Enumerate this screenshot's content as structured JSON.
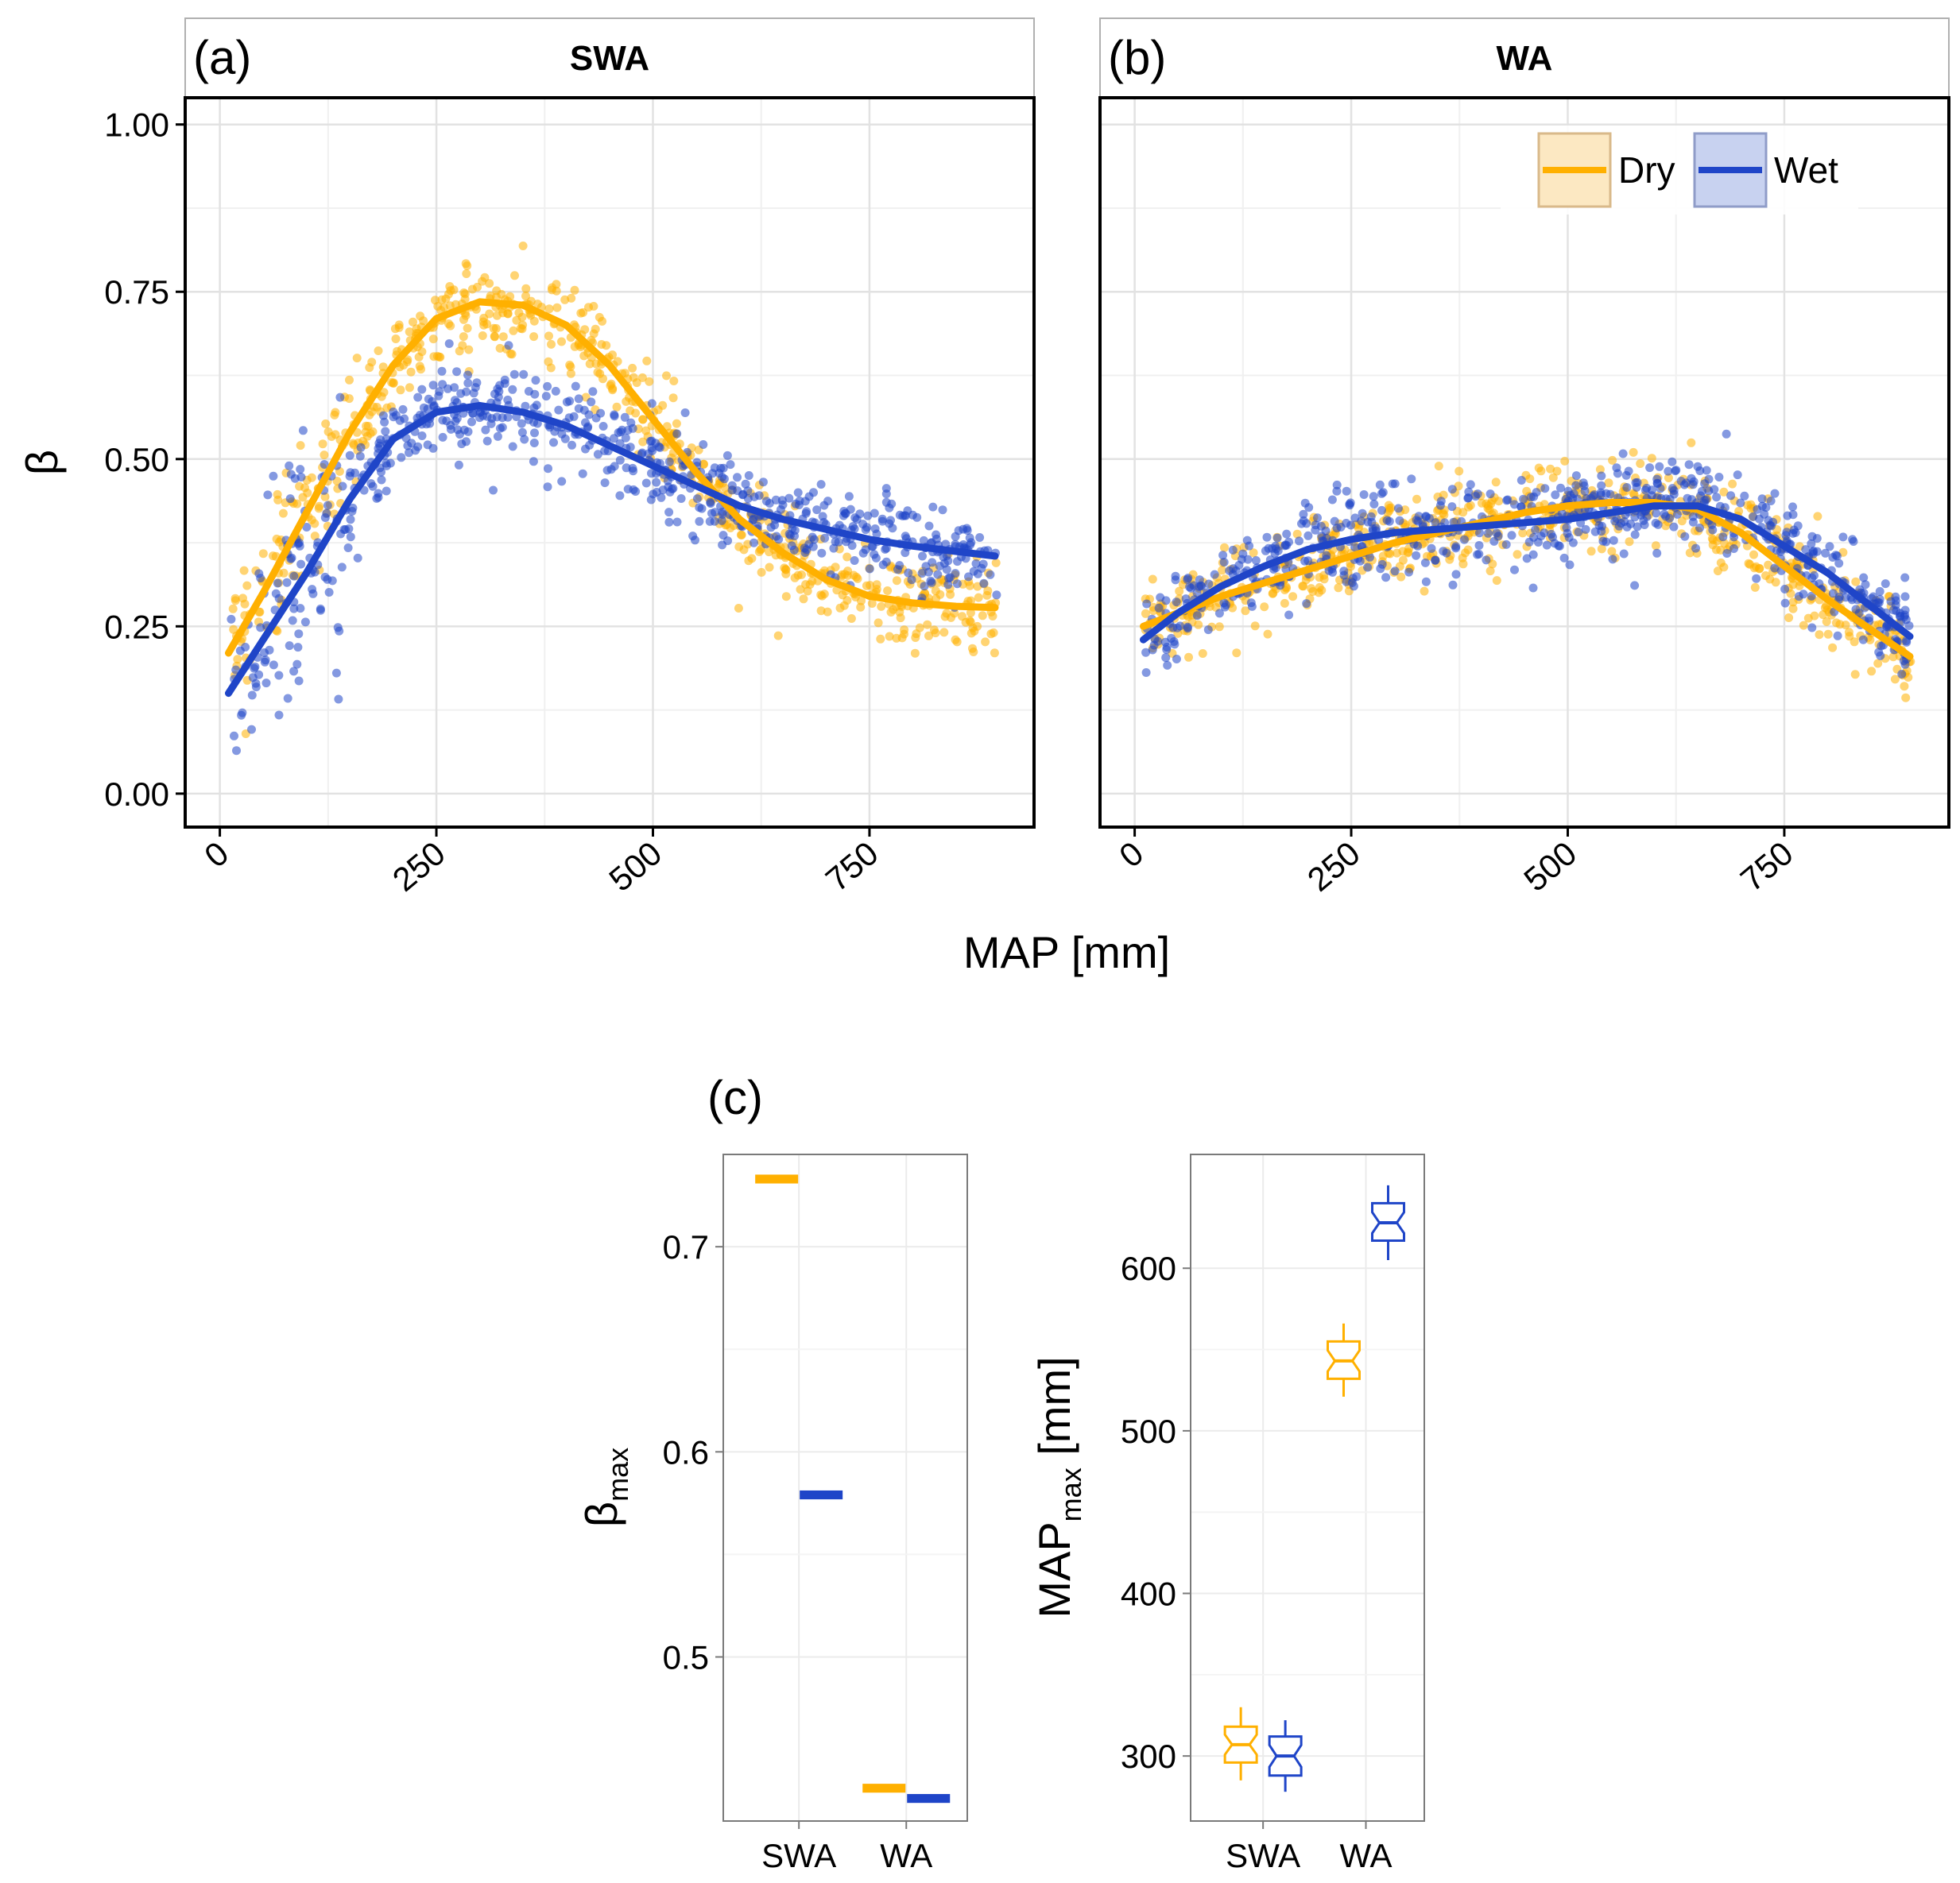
{
  "chart_data": [
    {
      "id": "a",
      "panel_tag": "(a)",
      "type": "scatter",
      "title": "SWA",
      "xlabel": "MAP [mm]",
      "ylabel": "β",
      "xlim": [
        -40,
        940
      ],
      "ylim": [
        -0.05,
        1.04
      ],
      "x_ticks": [
        0,
        250,
        500,
        750
      ],
      "x_tick_labels": [
        "0",
        "250",
        "500",
        "750"
      ],
      "y_ticks": [
        0,
        0.25,
        0.5,
        0.75,
        1.0
      ],
      "y_tick_labels": [
        "0.00",
        "0.25",
        "0.50",
        "0.75",
        "1.00"
      ],
      "grid": true,
      "series": [
        {
          "name": "Dry",
          "color": "#FFB000",
          "smooth": {
            "x": [
              10,
              50,
              100,
              150,
              200,
              250,
              300,
              350,
              400,
              450,
              500,
              550,
              600,
              650,
              700,
              750,
              800,
              850,
              895
            ],
            "y": [
              0.21,
              0.3,
              0.42,
              0.54,
              0.64,
              0.71,
              0.735,
              0.73,
              0.7,
              0.64,
              0.56,
              0.48,
              0.41,
              0.36,
              0.32,
              0.295,
              0.285,
              0.28,
              0.278
            ]
          }
        },
        {
          "name": "Wet",
          "color": "#1F45C8",
          "smooth": {
            "x": [
              10,
              50,
              100,
              150,
              200,
              250,
              300,
              350,
              400,
              450,
              500,
              550,
              600,
              650,
              700,
              750,
              800,
              850,
              895
            ],
            "y": [
              0.15,
              0.23,
              0.33,
              0.44,
              0.53,
              0.57,
              0.58,
              0.57,
              0.55,
              0.52,
              0.49,
              0.46,
              0.43,
              0.41,
              0.395,
              0.38,
              0.37,
              0.362,
              0.355
            ]
          }
        }
      ]
    },
    {
      "id": "b",
      "panel_tag": "(b)",
      "type": "scatter",
      "title": "WA",
      "xlabel": "MAP [mm]",
      "ylabel": "",
      "xlim": [
        -40,
        940
      ],
      "ylim": [
        -0.05,
        1.04
      ],
      "x_ticks": [
        0,
        250,
        500,
        750
      ],
      "x_tick_labels": [
        "0",
        "250",
        "500",
        "750"
      ],
      "y_ticks": [
        0,
        0.25,
        0.5,
        0.75,
        1.0
      ],
      "grid": true,
      "legend": {
        "position": "top-right",
        "entries": [
          "Dry",
          "Wet"
        ]
      },
      "series": [
        {
          "name": "Dry",
          "color": "#FFB000",
          "smooth": {
            "x": [
              10,
              50,
              100,
              150,
              200,
              250,
              300,
              350,
              400,
              450,
              500,
              550,
              600,
              650,
              700,
              750,
              800,
              850,
              895
            ],
            "y": [
              0.25,
              0.27,
              0.295,
              0.315,
              0.335,
              0.355,
              0.375,
              0.39,
              0.405,
              0.42,
              0.43,
              0.435,
              0.435,
              0.425,
              0.39,
              0.34,
              0.29,
              0.245,
              0.205
            ]
          }
        },
        {
          "name": "Wet",
          "color": "#1F45C8",
          "smooth": {
            "x": [
              10,
              50,
              100,
              150,
              200,
              250,
              300,
              350,
              400,
              450,
              500,
              550,
              600,
              650,
              700,
              750,
              800,
              850,
              895
            ],
            "y": [
              0.23,
              0.27,
              0.31,
              0.34,
              0.365,
              0.38,
              0.39,
              0.395,
              0.4,
              0.405,
              0.41,
              0.42,
              0.43,
              0.43,
              0.41,
              0.37,
              0.33,
              0.28,
              0.235
            ]
          }
        }
      ]
    },
    {
      "id": "c-beta",
      "panel_tag": "(c)",
      "type": "box",
      "title": "",
      "xlabel": "",
      "ylabel_main": "β",
      "ylabel_sub": "max",
      "categories": [
        "SWA",
        "WA"
      ],
      "ylim": [
        0.42,
        0.745
      ],
      "y_ticks": [
        0.5,
        0.6,
        0.7
      ],
      "y_tick_labels": [
        "0.5",
        "0.6",
        "0.7"
      ],
      "grid": true,
      "series": [
        {
          "name": "Dry",
          "color": "#FFB000",
          "median": [
            0.733,
            0.436
          ],
          "q1": [
            0.732,
            0.435
          ],
          "q3": [
            0.734,
            0.437
          ],
          "whisker_low": [
            0.731,
            0.434
          ],
          "whisker_high": [
            0.735,
            0.438
          ]
        },
        {
          "name": "Wet",
          "color": "#1F45C8",
          "median": [
            0.579,
            0.431
          ],
          "q1": [
            0.578,
            0.43
          ],
          "q3": [
            0.58,
            0.432
          ],
          "whisker_low": [
            0.577,
            0.429
          ],
          "whisker_high": [
            0.581,
            0.433
          ]
        }
      ]
    },
    {
      "id": "c-map",
      "type": "box",
      "title": "",
      "xlabel": "",
      "ylabel_main": "MAP",
      "ylabel_sub": "max",
      "ylabel_tail": " [mm]",
      "categories": [
        "SWA",
        "WA"
      ],
      "ylim": [
        260,
        670
      ],
      "y_ticks": [
        300,
        400,
        500,
        600
      ],
      "y_tick_labels": [
        "300",
        "400",
        "500",
        "600"
      ],
      "grid": true,
      "series": [
        {
          "name": "Dry",
          "color": "#FFB000",
          "median": [
            307,
            543
          ],
          "q1": [
            296,
            532
          ],
          "q3": [
            318,
            555
          ],
          "whisker_low": [
            285,
            521
          ],
          "whisker_high": [
            330,
            566
          ]
        },
        {
          "name": "Wet",
          "color": "#1F45C8",
          "median": [
            300,
            628
          ],
          "q1": [
            288,
            617
          ],
          "q3": [
            312,
            640
          ],
          "whisker_low": [
            278,
            605
          ],
          "whisker_high": [
            322,
            651
          ]
        }
      ]
    }
  ]
}
